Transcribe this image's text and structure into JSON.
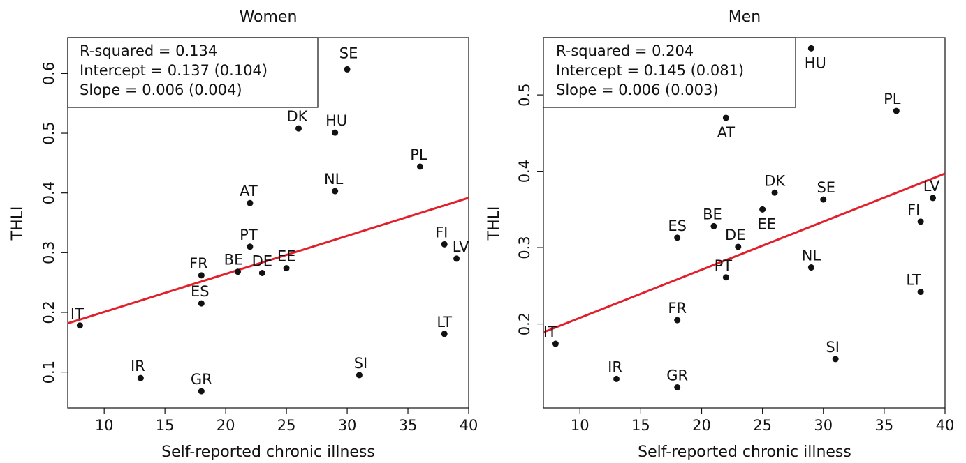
{
  "chart_data": [
    {
      "type": "scatter",
      "title": "Women",
      "xlabel": "Self-reported chronic illness",
      "ylabel": "THLI",
      "xlim": [
        7,
        40
      ],
      "ylim": [
        0.04,
        0.66
      ],
      "xticks": [
        "10",
        "15",
        "20",
        "25",
        "30",
        "35",
        "40"
      ],
      "yticks": [
        "0.1",
        "0.2",
        "0.3",
        "0.4",
        "0.5",
        "0.6"
      ],
      "grid": false,
      "stats": [
        "R-squared = 0.134",
        "Intercept = 0.137 (0.104)",
        "Slope = 0.006 (0.004)"
      ],
      "fit_line": {
        "intercept": 0.137,
        "slope": 0.00637,
        "color": "#e0202b"
      },
      "points": [
        {
          "label": "IT",
          "x": 8,
          "y": 0.178
        },
        {
          "label": "IR",
          "x": 13,
          "y": 0.09
        },
        {
          "label": "GR",
          "x": 18,
          "y": 0.068
        },
        {
          "label": "ES",
          "x": 18,
          "y": 0.215
        },
        {
          "label": "FR",
          "x": 18,
          "y": 0.262
        },
        {
          "label": "BE",
          "x": 21,
          "y": 0.268
        },
        {
          "label": "PT",
          "x": 22,
          "y": 0.31
        },
        {
          "label": "AT",
          "x": 22,
          "y": 0.383
        },
        {
          "label": "DE",
          "x": 23,
          "y": 0.266
        },
        {
          "label": "EE",
          "x": 25,
          "y": 0.274
        },
        {
          "label": "DK",
          "x": 26,
          "y": 0.508
        },
        {
          "label": "HU",
          "x": 29,
          "y": 0.501
        },
        {
          "label": "NL",
          "x": 29,
          "y": 0.403
        },
        {
          "label": "SE",
          "x": 30,
          "y": 0.607
        },
        {
          "label": "SI",
          "x": 31,
          "y": 0.095
        },
        {
          "label": "PL",
          "x": 36,
          "y": 0.444
        },
        {
          "label": "FI",
          "x": 38,
          "y": 0.314
        },
        {
          "label": "LT",
          "x": 38,
          "y": 0.164
        },
        {
          "label": "LV",
          "x": 39,
          "y": 0.29
        }
      ]
    },
    {
      "type": "scatter",
      "title": "Men",
      "xlabel": "Self-reported chronic illness",
      "ylabel": "THLI",
      "xlim": [
        7,
        40
      ],
      "ylim": [
        0.09,
        0.575
      ],
      "xticks": [
        "10",
        "15",
        "20",
        "25",
        "30",
        "35",
        "40"
      ],
      "yticks": [
        "0.2",
        "0.3",
        "0.4",
        "0.5"
      ],
      "grid": false,
      "stats": [
        "R-squared = 0.204",
        "Intercept = 0.145 (0.081)",
        "Slope = 0.006 (0.003)"
      ],
      "fit_line": {
        "intercept": 0.145,
        "slope": 0.0063,
        "color": "#e0202b"
      },
      "points": [
        {
          "label": "IT",
          "x": 8,
          "y": 0.174
        },
        {
          "label": "IR",
          "x": 13,
          "y": 0.128
        },
        {
          "label": "GR",
          "x": 18,
          "y": 0.117
        },
        {
          "label": "FR",
          "x": 18,
          "y": 0.205
        },
        {
          "label": "ES",
          "x": 18,
          "y": 0.313
        },
        {
          "label": "BE",
          "x": 21,
          "y": 0.328
        },
        {
          "label": "AT",
          "x": 22,
          "y": 0.47
        },
        {
          "label": "PT",
          "x": 22,
          "y": 0.261
        },
        {
          "label": "DE",
          "x": 23,
          "y": 0.301
        },
        {
          "label": "EE",
          "x": 25,
          "y": 0.35
        },
        {
          "label": "DK",
          "x": 26,
          "y": 0.372
        },
        {
          "label": "HU",
          "x": 29,
          "y": 0.561
        },
        {
          "label": "NL",
          "x": 29,
          "y": 0.274
        },
        {
          "label": "SE",
          "x": 30,
          "y": 0.363
        },
        {
          "label": "SI",
          "x": 31,
          "y": 0.154
        },
        {
          "label": "PL",
          "x": 36,
          "y": 0.479
        },
        {
          "label": "FI",
          "x": 38,
          "y": 0.334
        },
        {
          "label": "LT",
          "x": 38,
          "y": 0.242
        },
        {
          "label": "LV",
          "x": 39,
          "y": 0.365
        }
      ]
    }
  ]
}
